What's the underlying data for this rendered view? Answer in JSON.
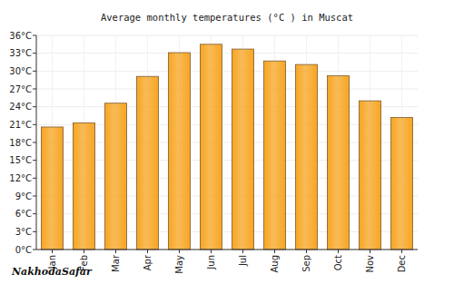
{
  "chart_data": {
    "type": "bar",
    "title": "Average monthly temperatures (°C ) in Muscat",
    "categories": [
      "Jan",
      "Feb",
      "Mar",
      "Apr",
      "May",
      "Jun",
      "Jul",
      "Aug",
      "Sep",
      "Oct",
      "Nov",
      "Dec"
    ],
    "values": [
      20.6,
      21.3,
      24.6,
      29.1,
      33.1,
      34.5,
      33.7,
      31.7,
      31.1,
      29.2,
      25.0,
      22.2
    ],
    "color": "#f7a521",
    "ylim": [
      0,
      36
    ],
    "yticks": [
      {
        "value": 0,
        "label": "0°C"
      },
      {
        "value": 3,
        "label": "3°C"
      },
      {
        "value": 6,
        "label": "6°C"
      },
      {
        "value": 9,
        "label": "9°C"
      },
      {
        "value": 12,
        "label": "12°C"
      },
      {
        "value": 15,
        "label": "15°C"
      },
      {
        "value": 18,
        "label": "18°C"
      },
      {
        "value": 21,
        "label": "21°C"
      },
      {
        "value": 24,
        "label": "24°C"
      },
      {
        "value": 27,
        "label": "27°C"
      },
      {
        "value": 30,
        "label": "30°C"
      },
      {
        "value": 33,
        "label": "33°C"
      },
      {
        "value": 36,
        "label": "36°C"
      }
    ],
    "grid": true,
    "annotations": [
      "NakhodaSafar"
    ]
  }
}
